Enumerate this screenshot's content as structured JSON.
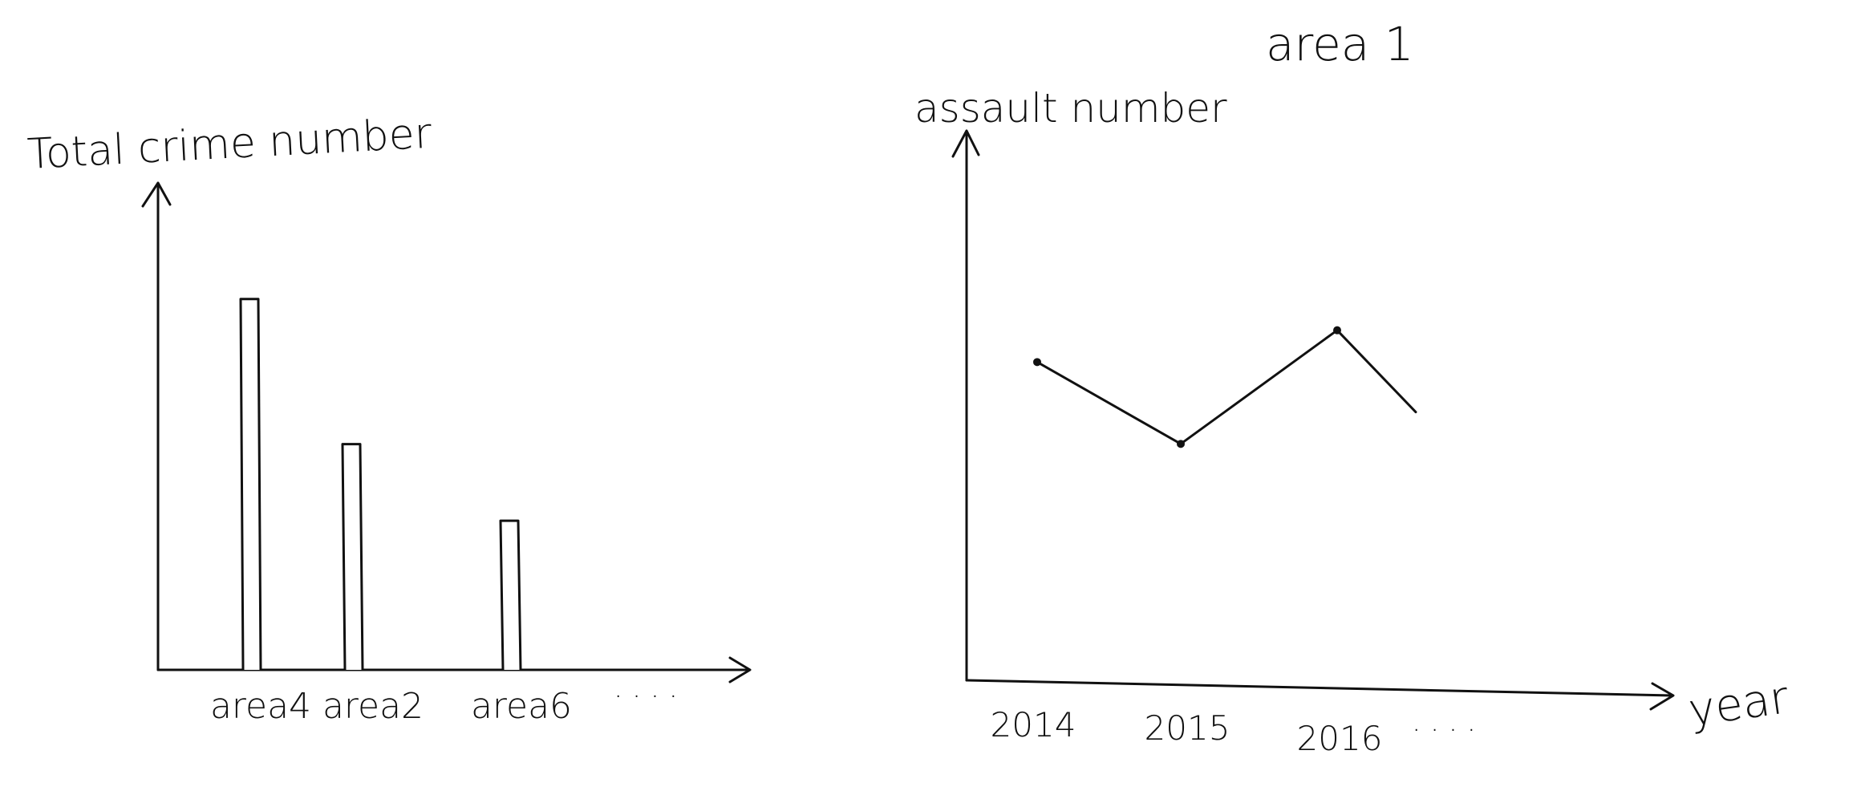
{
  "chart_data": [
    {
      "type": "bar",
      "title": "",
      "xlabel": "",
      "ylabel": "Total crime number",
      "categories": [
        "area4",
        "area2",
        "area6"
      ],
      "values": [
        92,
        56,
        37
      ],
      "ylim": [
        0,
        120
      ],
      "continuation": "· · · ·",
      "grid": false
    },
    {
      "type": "line",
      "title": "area 1",
      "xlabel": "year",
      "ylabel": "assault number",
      "categories": [
        "2014",
        "2015",
        "2016"
      ],
      "series": [
        {
          "name": "assault number",
          "values": [
            70,
            52,
            77
          ]
        }
      ],
      "trailing_value": 59,
      "ylim": [
        0,
        120
      ],
      "continuation": "· · · ·",
      "grid": false
    }
  ]
}
